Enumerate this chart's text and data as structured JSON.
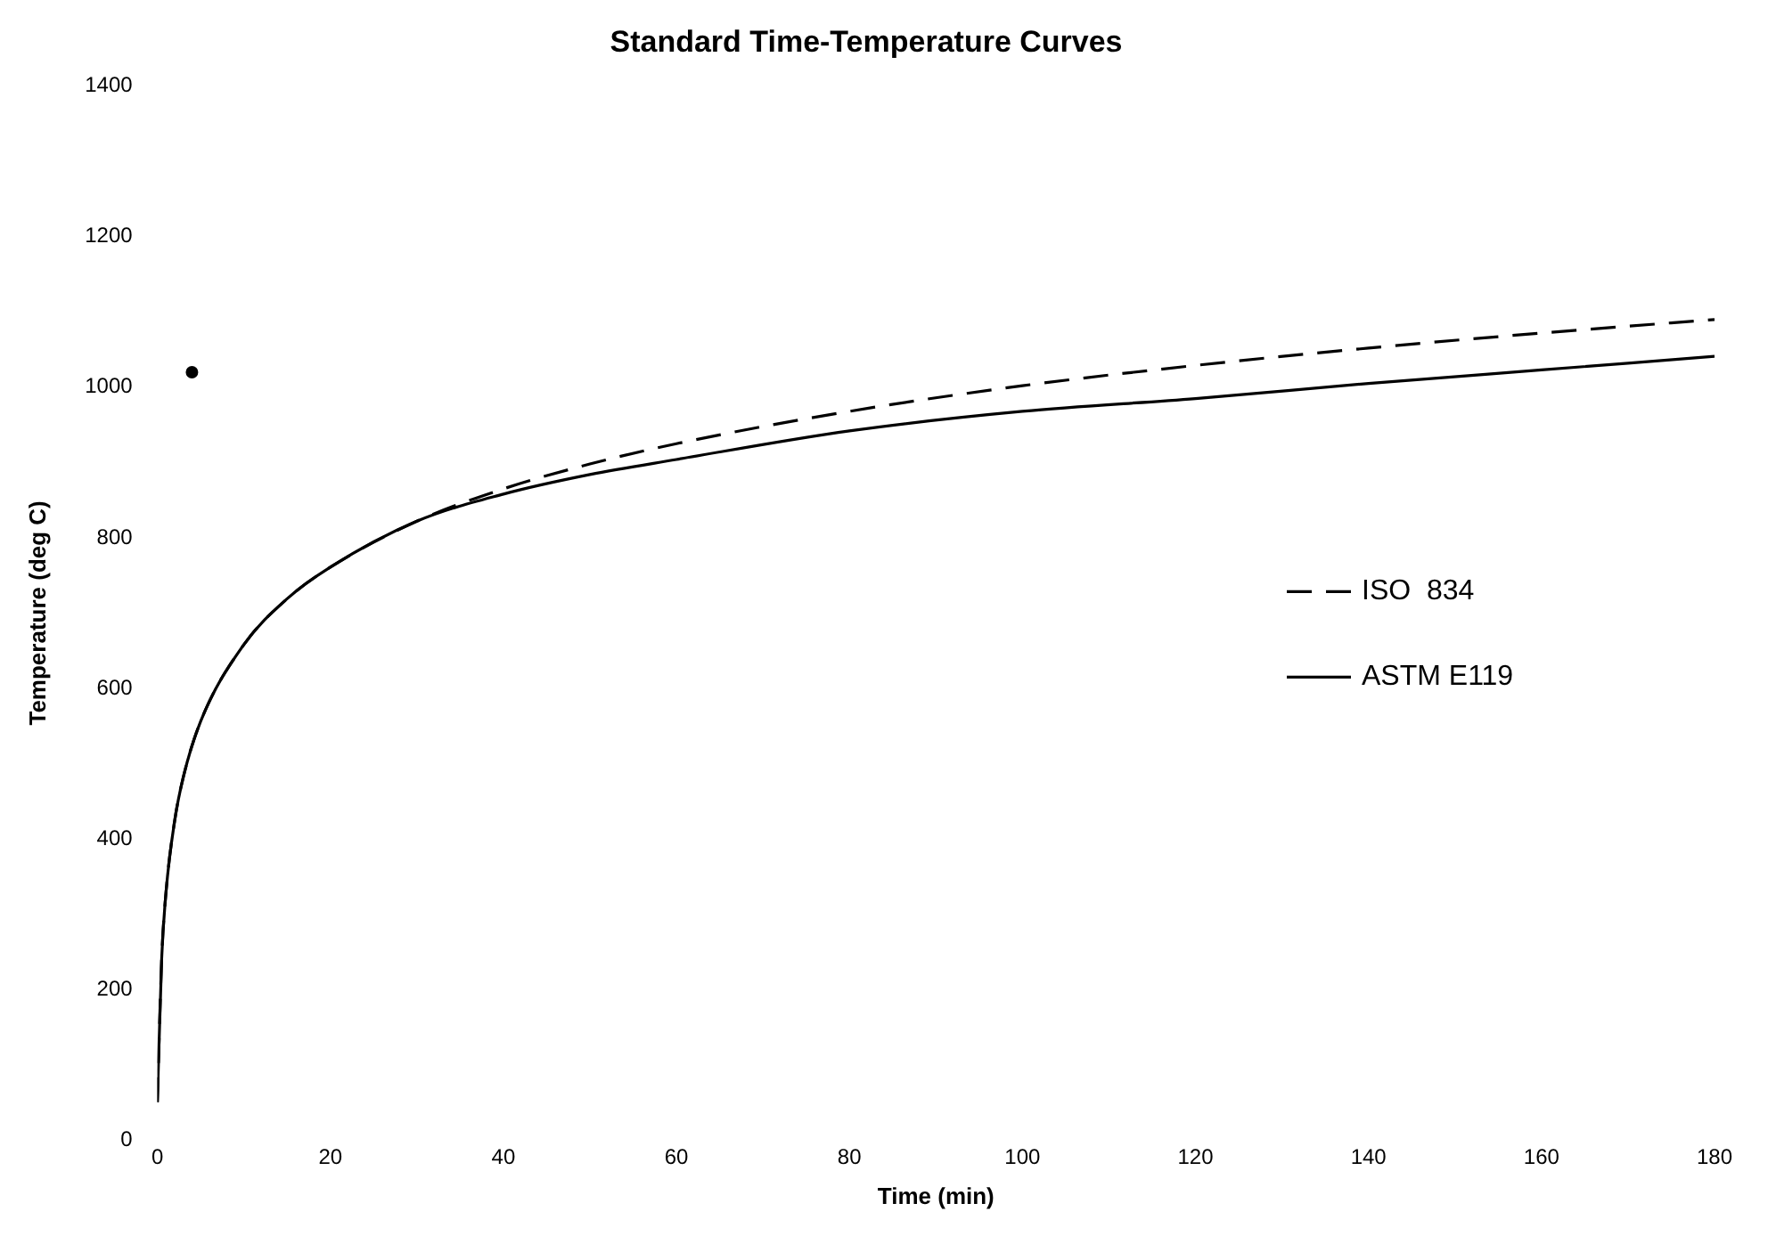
{
  "chart_data": {
    "type": "line",
    "title": "Standard Time-Temperature Curves",
    "xlabel": "Time (min)",
    "ylabel": "Temperature (deg C)",
    "xlim": [
      0,
      180
    ],
    "xticks": [
      0,
      20,
      40,
      60,
      80,
      100,
      120,
      140,
      160,
      180
    ],
    "ylim": [
      0,
      1400
    ],
    "yticks": [
      0,
      200,
      400,
      600,
      800,
      1000,
      1200,
      1400
    ],
    "grid": false,
    "legend": "right",
    "series": [
      {
        "name": "ISO  834",
        "color": "#000000",
        "line_style": "dashed",
        "x": [
          0,
          0.5,
          1,
          2,
          3,
          5,
          10,
          15,
          20,
          30,
          40,
          50,
          60,
          80,
          100,
          120,
          140,
          160,
          180
        ],
        "values": [
          50,
          241,
          329,
          424,
          482,
          556,
          658,
          719,
          761,
          822,
          865,
          898,
          925,
          968,
          1002,
          1029,
          1052,
          1072,
          1090
        ]
      },
      {
        "name": "ASTM E119",
        "color": "#000000",
        "line_style": "solid",
        "x": [
          0,
          0.5,
          1,
          2,
          3,
          5,
          10,
          15,
          20,
          30,
          40,
          50,
          60,
          80,
          100,
          120,
          140,
          160,
          180
        ],
        "values": [
          50,
          241,
          329,
          424,
          482,
          556,
          658,
          719,
          761,
          822,
          858,
          884,
          904,
          942,
          968,
          985,
          1005,
          1023,
          1041
        ]
      },
      {
        "type": "scatter",
        "color": "#000000",
        "marker": "circle",
        "x": [
          4
        ],
        "values": [
          1020
        ]
      }
    ]
  }
}
